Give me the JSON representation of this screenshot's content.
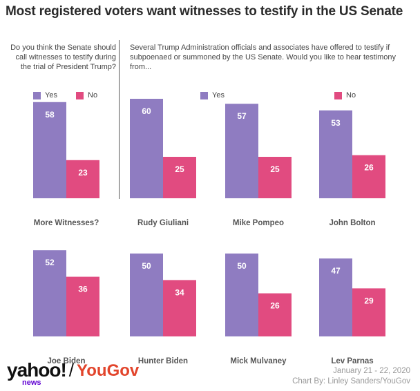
{
  "title": "Most registered voters want witnesses to testify in the US Senate",
  "question1": "Do you think the Senate should call witnesses to testify during the trial of President Trump?",
  "question2": "Several Trump Administration officials and associates have offered to testify if subpoenaed or summoned by the US Senate. Would you like to hear testimony from...",
  "legend": {
    "yes": "Yes",
    "no": "No"
  },
  "colors": {
    "yes": "#8f7cc1",
    "no": "#e14b80"
  },
  "footer": {
    "logo_yahoo": "yahoo!",
    "logo_news": "news",
    "logo_slash": "/",
    "logo_yougov": "YouGov",
    "date": "January 21 - 22, 2020",
    "credit": "Chart By: Linley Sanders/YouGov"
  },
  "chart_data": {
    "type": "bar",
    "categories": [
      "More Witnesses?",
      "Rudy Giuliani",
      "Mike Pompeo",
      "John Bolton",
      "Joe Biden",
      "Hunter Biden",
      "Mick Mulvaney",
      "Lev Parnas"
    ],
    "series": [
      {
        "name": "Yes",
        "values": [
          58,
          60,
          57,
          53,
          52,
          50,
          50,
          47
        ]
      },
      {
        "name": "No",
        "values": [
          23,
          25,
          25,
          26,
          36,
          34,
          26,
          29
        ]
      }
    ],
    "ylim": [
      0,
      60
    ]
  }
}
